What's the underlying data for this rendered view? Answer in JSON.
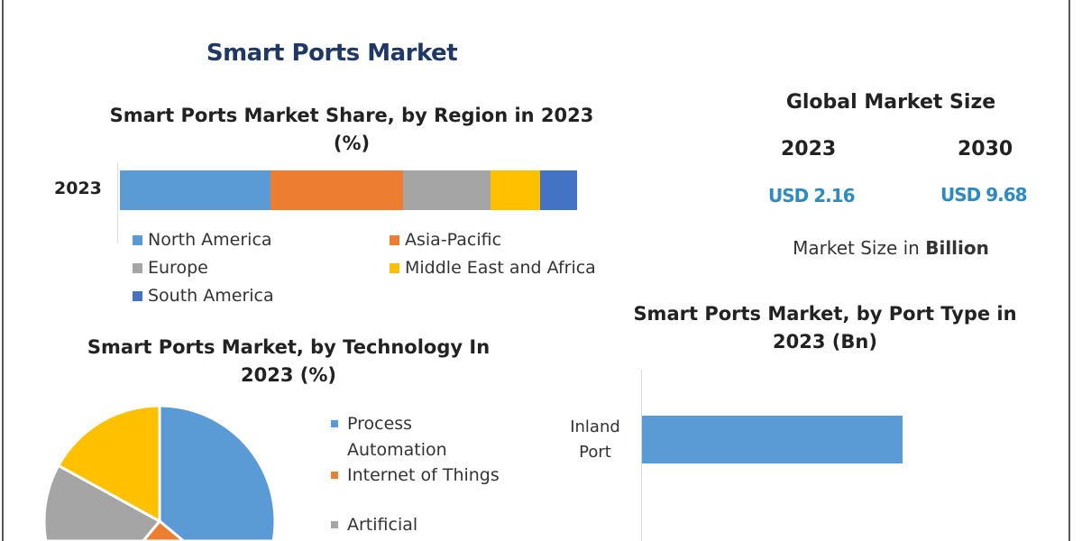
{
  "title": "Smart Ports Market",
  "chart_data": [
    {
      "type": "bar",
      "stacked": true,
      "orientation": "horizontal",
      "title": "Smart Ports Market Share, by Region in 2023 (%)",
      "title_lines": [
        "Smart Ports Market Share, by Region in 2023",
        "(%)"
      ],
      "categories": [
        "2023"
      ],
      "series": [
        {
          "name": "North America",
          "values": [
            33
          ],
          "color": "#5b9bd5"
        },
        {
          "name": "Asia-Pacific",
          "values": [
            29
          ],
          "color": "#ed7d31"
        },
        {
          "name": "Europe",
          "values": [
            19
          ],
          "color": "#a5a5a5"
        },
        {
          "name": "Middle East and Africa",
          "values": [
            11
          ],
          "color": "#ffc000"
        },
        {
          "name": "South America",
          "values": [
            8
          ],
          "color": "#4472c4"
        }
      ],
      "legend": "bottom"
    },
    {
      "type": "pie",
      "title_lines": [
        "Smart Ports Market, by Technology In",
        "2023 (%)"
      ],
      "slices": [
        {
          "label": "Process Automation",
          "label_lines": [
            "Process",
            "Automation"
          ],
          "value": 36,
          "color": "#5b9bd5"
        },
        {
          "label": "Internet of Things",
          "label_lines": [
            "Internet of Things"
          ],
          "value": 25,
          "color": "#ed7d31"
        },
        {
          "label": "Artificial",
          "label_lines": [
            "Artificial"
          ],
          "value": 22,
          "color": "#a5a5a5"
        },
        {
          "label": "",
          "value": 17,
          "color": "#ffc000"
        }
      ],
      "legend": "right"
    },
    {
      "type": "bar",
      "orientation": "horizontal",
      "title_lines": [
        "Smart Ports Market, by Port Type in",
        "2023 (Bn)"
      ],
      "categories": [
        "Inland Port"
      ],
      "category_lines": [
        [
          "Inland",
          "Port"
        ]
      ],
      "values": [
        0.61
      ],
      "xlim": [
        0,
        1
      ],
      "color": "#5b9bd5"
    }
  ],
  "global": {
    "heading": "Global Market Size",
    "year1": "2023",
    "year2": "2030",
    "value1": "USD 2.16",
    "value2": "USD 9.68",
    "note_prefix": "Market Size in ",
    "note_bold": "Billion"
  }
}
